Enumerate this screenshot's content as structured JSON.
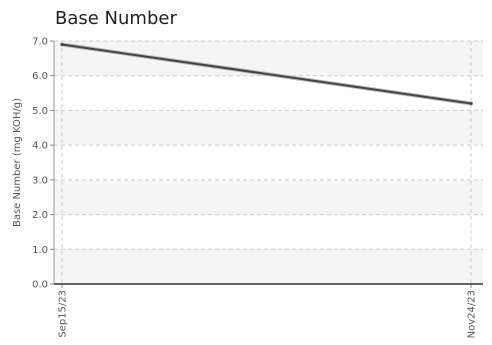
{
  "chart_data": {
    "type": "line",
    "title": "Base Number",
    "ylabel": "Base Number (mg KOH/g)",
    "xlabel": "",
    "ylim": [
      0,
      7
    ],
    "yticks": [
      "0.0",
      "1.0",
      "2.0",
      "3.0",
      "4.0",
      "5.0",
      "6.0",
      "7.0"
    ],
    "x_ticks": [
      "Sep15/23",
      "Nov24/23"
    ],
    "series": [
      {
        "values": [
          {
            "x": "Sep15/23",
            "y": 6.9
          },
          {
            "x": "Nov24/23",
            "y": 5.2
          }
        ],
        "color": "#444444"
      }
    ],
    "grid": true,
    "grid_style": "dashed",
    "band_color": "#f5f5f5"
  }
}
